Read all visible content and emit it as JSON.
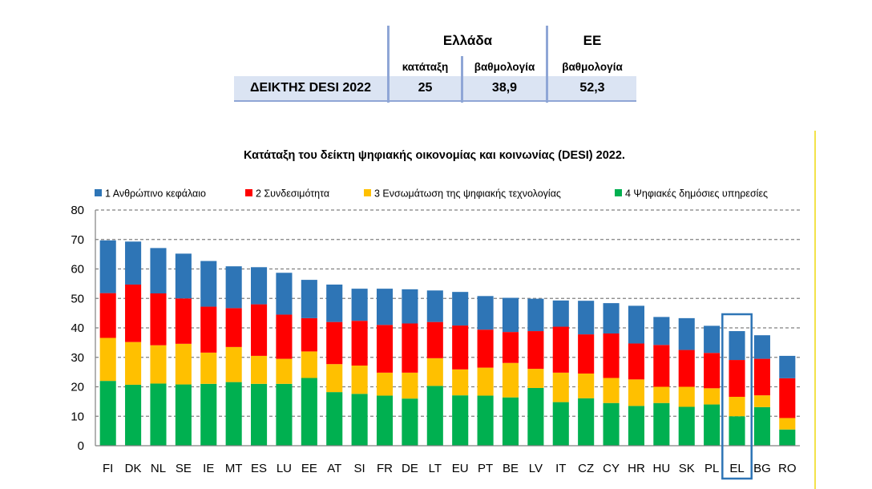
{
  "summary_table": {
    "group_greece": "Ελλάδα",
    "group_eu": "ΕΕ",
    "col_rank": "κατάταξη",
    "col_score_gr": "βαθμολογία",
    "col_score_eu": "βαθμολογία",
    "row_label": "ΔΕΙΚΤΗΣ DESI 2022",
    "rank_value": "25",
    "score_gr_value": "38,9",
    "score_eu_value": "52,3"
  },
  "colors": {
    "human_capital": "#2e75b6",
    "connectivity": "#ff0000",
    "integration": "#ffc000",
    "public_services": "#00b050",
    "highlight_box": "#2e75b6",
    "table_fill": "#dbe4f3"
  },
  "chart_data": {
    "type": "bar",
    "stacked": true,
    "title": "Κατάταξη του δείκτη ψηφιακής οικονομίας και κοινωνίας (DESI) 2022.",
    "xlabel": "",
    "ylabel": "",
    "ylim": [
      0,
      80
    ],
    "yticks": [
      0,
      10,
      20,
      30,
      40,
      50,
      60,
      70,
      80
    ],
    "grid": true,
    "legend_position": "top",
    "highlight_category": "EL",
    "categories": [
      "FI",
      "DK",
      "NL",
      "SE",
      "IE",
      "MT",
      "ES",
      "LU",
      "EE",
      "AT",
      "SI",
      "FR",
      "DE",
      "LT",
      "EU",
      "PT",
      "BE",
      "LV",
      "IT",
      "CZ",
      "CY",
      "HR",
      "HU",
      "SK",
      "PL",
      "EL",
      "BG",
      "RO"
    ],
    "series": [
      {
        "name": "4 Ψηφιακές δημόσιες υπηρεσίες",
        "color_key": "public_services",
        "values": [
          22.0,
          20.7,
          21.1,
          20.8,
          21.0,
          21.6,
          21.0,
          21.0,
          23.0,
          18.2,
          17.6,
          17.0,
          16.0,
          20.3,
          17.1,
          17.0,
          16.4,
          19.6,
          14.8,
          16.1,
          14.5,
          13.5,
          14.5,
          13.2,
          14.0,
          10.0,
          13.1,
          5.5
        ]
      },
      {
        "name": "3 Ενσωμάτωση της ψηφιακής τεχνολογίας",
        "color_key": "integration",
        "values": [
          14.6,
          14.5,
          13.0,
          13.8,
          10.6,
          11.9,
          9.5,
          8.5,
          9.0,
          9.5,
          9.6,
          7.8,
          8.8,
          9.4,
          8.8,
          9.5,
          11.7,
          6.5,
          10.0,
          8.4,
          8.5,
          9.0,
          5.5,
          6.8,
          5.5,
          6.6,
          4.0,
          3.9
        ]
      },
      {
        "name": "2 Συνδεσιμότητα",
        "color_key": "connectivity",
        "values": [
          15.2,
          19.5,
          17.6,
          15.4,
          15.6,
          13.2,
          17.5,
          15.0,
          11.3,
          14.3,
          15.2,
          16.2,
          16.7,
          12.3,
          14.9,
          12.9,
          10.5,
          12.8,
          15.6,
          13.3,
          15.1,
          12.2,
          14.2,
          12.5,
          12.0,
          12.5,
          12.4,
          13.5
        ]
      },
      {
        "name": "1 Ανθρώπινο κεφάλαιο",
        "color_key": "human_capital",
        "values": [
          17.9,
          14.6,
          15.4,
          15.2,
          15.5,
          14.2,
          12.6,
          14.2,
          13.0,
          12.7,
          10.9,
          12.3,
          11.6,
          10.7,
          11.4,
          11.4,
          11.6,
          11.0,
          8.9,
          11.4,
          10.3,
          12.8,
          9.5,
          10.8,
          9.2,
          9.8,
          8.0,
          7.6
        ]
      }
    ]
  }
}
